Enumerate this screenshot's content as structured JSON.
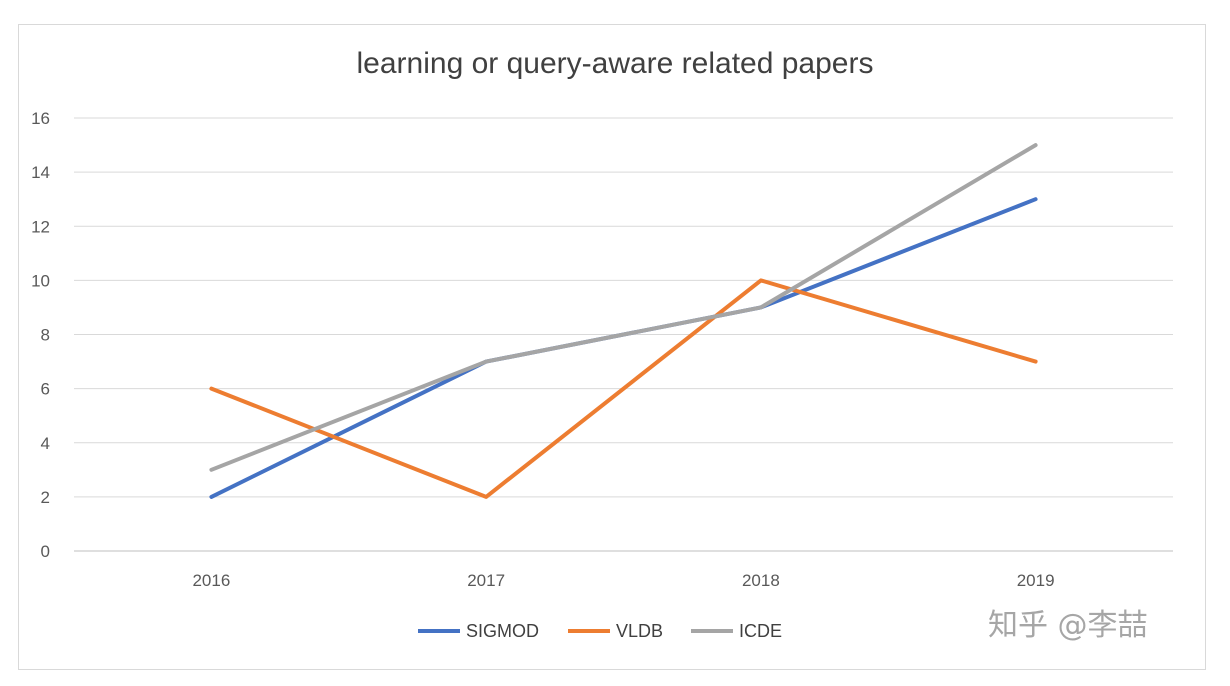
{
  "chart_data": {
    "type": "line",
    "title": "learning or query-aware related papers",
    "categories": [
      "2016",
      "2017",
      "2018",
      "2019"
    ],
    "ylim": [
      0,
      16
    ],
    "yticks": [
      0,
      2,
      4,
      6,
      8,
      10,
      12,
      14,
      16
    ],
    "grid": true,
    "legend_position": "bottom",
    "series": [
      {
        "name": "SIGMOD",
        "values": [
          2,
          7,
          9,
          13
        ],
        "color": "#4472c4"
      },
      {
        "name": "VLDB",
        "values": [
          6,
          2,
          10,
          7
        ],
        "color": "#ed7d31"
      },
      {
        "name": "ICDE",
        "values": [
          3,
          7,
          9,
          15
        ],
        "color": "#a5a5a5"
      }
    ]
  },
  "watermark": "知乎 @李喆"
}
